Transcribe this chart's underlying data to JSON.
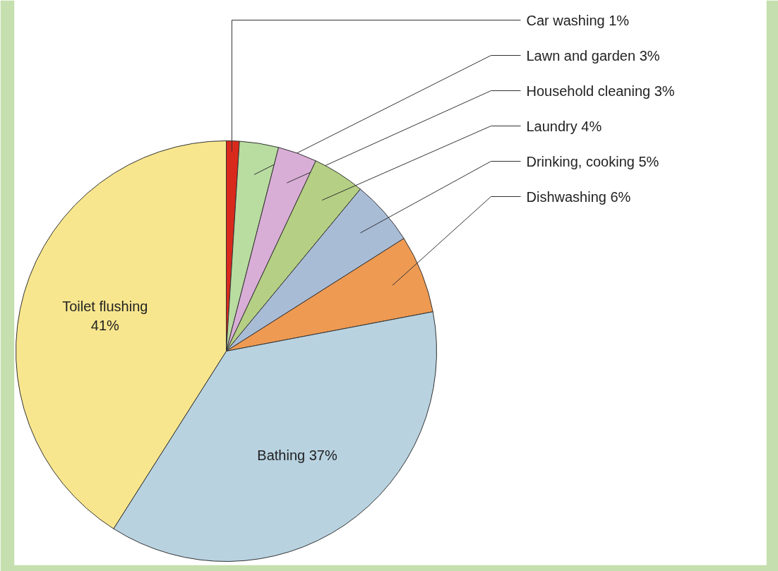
{
  "chart_data": {
    "type": "pie",
    "categories": [
      "Car washing",
      "Lawn and garden",
      "Household cleaning",
      "Laundry",
      "Drinking, cooking",
      "Dishwashing",
      "Bathing",
      "Toilet flushing"
    ],
    "values": [
      1,
      3,
      3,
      4,
      5,
      6,
      37,
      41
    ],
    "colors": [
      "#d9291c",
      "#b9dca0",
      "#d9aed6",
      "#b5cf84",
      "#a9bcd6",
      "#ee9a52",
      "#b8d2e0",
      "#f8e68e"
    ],
    "value_labels": [
      "1%",
      "3%",
      "3%",
      "4%",
      "5%",
      "6%",
      "37%",
      "41%"
    ]
  }
}
